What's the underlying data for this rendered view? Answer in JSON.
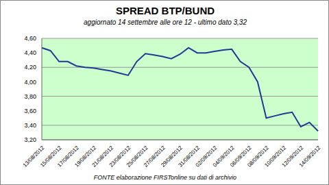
{
  "chart_data": {
    "type": "line",
    "title": "SPREAD BTP/BUND",
    "subtitle": "aggiornato 14 settembre alle ore 12 - ultimo dato 3,32",
    "footer": "FONTE elaborazione FIRSTonline su dati di archivio",
    "categories": [
      "13/08/2012",
      null,
      "15/08/2012",
      null,
      "17/08/2012",
      null,
      "19/08/2012",
      null,
      "21/08/2012",
      null,
      "23/08/2012",
      null,
      "25/08/2012",
      null,
      "27/08/2012",
      null,
      "29/08/2012",
      null,
      "31/08/2012",
      null,
      "02/09/2012",
      null,
      "04/09/2012",
      null,
      "06/09/2012",
      null,
      "08/09/2012",
      null,
      "10/09/2012",
      null,
      "12/09/2012",
      null,
      "14/09/2012"
    ],
    "series": [
      {
        "name": "SPREAD BTP/BUND",
        "color": "#1f3a93",
        "values": [
          4.47,
          4.43,
          4.28,
          4.28,
          4.22,
          4.2,
          4.19,
          4.17,
          4.15,
          4.12,
          4.09,
          4.28,
          4.39,
          4.37,
          4.35,
          4.32,
          4.38,
          4.47,
          4.4,
          4.4,
          4.42,
          4.44,
          4.45,
          4.28,
          4.2,
          4.0,
          3.5,
          3.53,
          3.56,
          3.58,
          3.38,
          3.44,
          3.32
        ]
      }
    ],
    "ylim": [
      3.2,
      4.6
    ],
    "yticks": [
      {
        "value": 3.2,
        "label": "3,20"
      },
      {
        "value": 3.4,
        "label": "3,40"
      },
      {
        "value": 3.6,
        "label": "3,60"
      },
      {
        "value": 3.8,
        "label": "3,80"
      },
      {
        "value": 4.0,
        "label": "4,00"
      },
      {
        "value": 4.2,
        "label": "4,20"
      },
      {
        "value": 4.4,
        "label": "4,40"
      },
      {
        "value": 4.6,
        "label": "4,60"
      }
    ],
    "grid": true
  }
}
